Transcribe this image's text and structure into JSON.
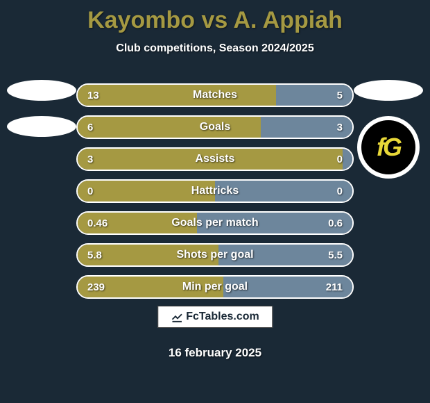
{
  "title": "Kayombo vs A. Appiah",
  "subtitle": "Club competitions, Season 2024/2025",
  "date": "16 february 2025",
  "footer": "FcTables.com",
  "colors": {
    "left": "#a59942",
    "right": "#6d869c",
    "border": "#ffffff",
    "accent": "#a59942",
    "bg": "#1a2936"
  },
  "stats": [
    {
      "label": "Matches",
      "left_val": "13",
      "right_val": "5",
      "left_num": 13,
      "right_num": 5
    },
    {
      "label": "Goals",
      "left_val": "6",
      "right_val": "3",
      "left_num": 6,
      "right_num": 3
    },
    {
      "label": "Assists",
      "left_val": "3",
      "right_val": "0",
      "left_num": 3,
      "right_num": 0
    },
    {
      "label": "Hattricks",
      "left_val": "0",
      "right_val": "0",
      "left_num": 0,
      "right_num": 0
    },
    {
      "label": "Goals per match",
      "left_val": "0.46",
      "right_val": "0.6",
      "left_num": 0.46,
      "right_num": 0.6
    },
    {
      "label": "Shots per goal",
      "left_val": "5.8",
      "right_val": "5.5",
      "left_num": 5.8,
      "right_num": 5.5
    },
    {
      "label": "Min per goal",
      "left_val": "239",
      "right_val": "211",
      "left_num": 239,
      "right_num": 211
    }
  ],
  "club_logo_text": "fG"
}
